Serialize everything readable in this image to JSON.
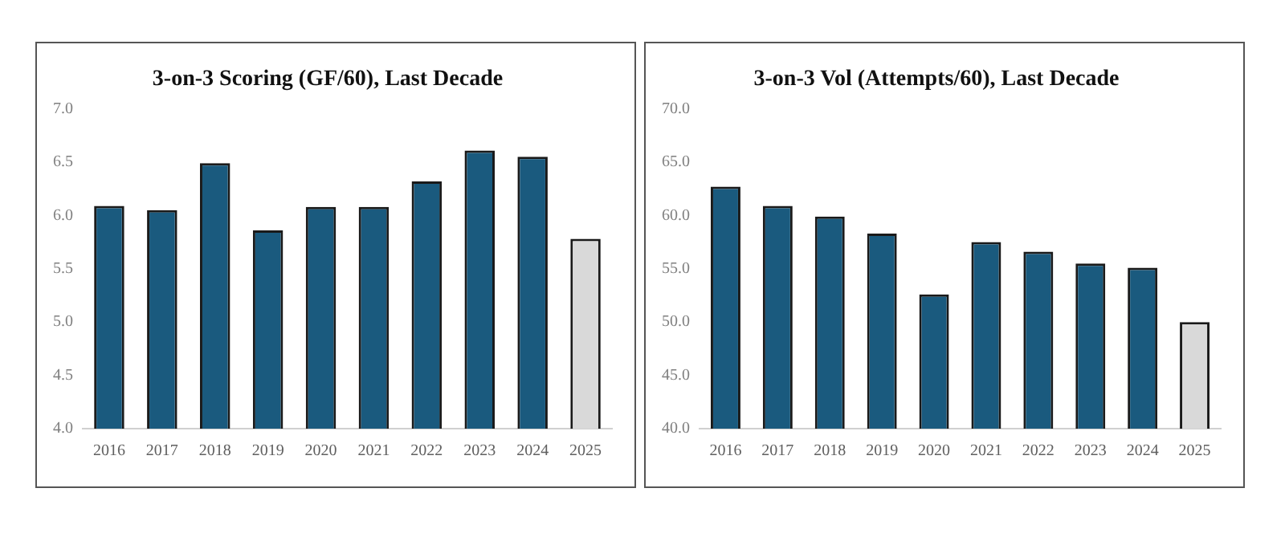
{
  "chart_data": [
    {
      "type": "bar",
      "title": "3-on-3 Scoring (GF/60), Last Decade",
      "categories": [
        "2016",
        "2017",
        "2018",
        "2019",
        "2020",
        "2021",
        "2022",
        "2023",
        "2024",
        "2025"
      ],
      "values": [
        6.09,
        6.05,
        6.49,
        5.86,
        6.08,
        6.08,
        6.32,
        6.61,
        6.55,
        5.78
      ],
      "colors": [
        "#1a5a7e",
        "#1a5a7e",
        "#1a5a7e",
        "#1a5a7e",
        "#1a5a7e",
        "#1a5a7e",
        "#1a5a7e",
        "#1a5a7e",
        "#1a5a7e",
        "#d9d9d9"
      ],
      "ylim": [
        4.0,
        7.0
      ],
      "yticks": [
        {
          "value": 4,
          "label": "4.0"
        },
        {
          "value": 4.5,
          "label": "4.5"
        },
        {
          "value": 5,
          "label": "5.0"
        },
        {
          "value": 5.5,
          "label": "5.5"
        },
        {
          "value": 6,
          "label": "6.0"
        },
        {
          "value": 6.5,
          "label": "6.5"
        },
        {
          "value": 7,
          "label": "7.0"
        }
      ],
      "grid": false,
      "legend": false
    },
    {
      "type": "bar",
      "title": "3-on-3 Vol (Attempts/60), Last Decade",
      "categories": [
        "2016",
        "2017",
        "2018",
        "2019",
        "2020",
        "2021",
        "2022",
        "2023",
        "2024",
        "2025"
      ],
      "values": [
        62.7,
        60.9,
        59.9,
        58.3,
        52.6,
        57.5,
        56.6,
        55.5,
        55.1,
        50.0
      ],
      "colors": [
        "#1a5a7e",
        "#1a5a7e",
        "#1a5a7e",
        "#1a5a7e",
        "#1a5a7e",
        "#1a5a7e",
        "#1a5a7e",
        "#1a5a7e",
        "#1a5a7e",
        "#d9d9d9"
      ],
      "ylim": [
        40.0,
        70.0
      ],
      "yticks": [
        {
          "value": 40,
          "label": "40.0"
        },
        {
          "value": 45,
          "label": "45.0"
        },
        {
          "value": 50,
          "label": "50.0"
        },
        {
          "value": 55,
          "label": "55.0"
        },
        {
          "value": 60,
          "label": "60.0"
        },
        {
          "value": 65,
          "label": "65.0"
        },
        {
          "value": 70,
          "label": "70.0"
        }
      ],
      "grid": false,
      "legend": false
    }
  ]
}
